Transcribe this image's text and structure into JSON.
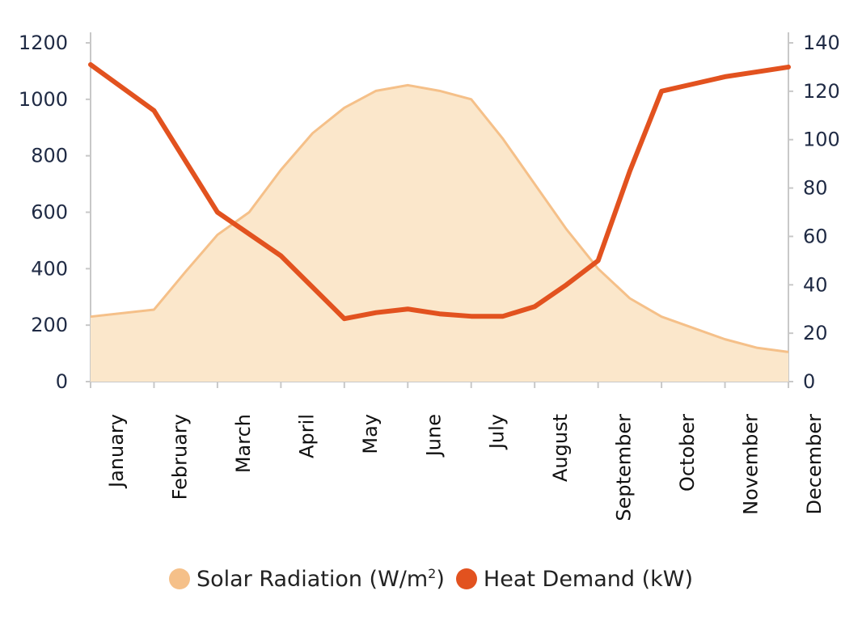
{
  "chart_data": {
    "type": "area",
    "categories": [
      "January",
      "February",
      "March",
      "April",
      "May",
      "June",
      "July",
      "August",
      "September",
      "October",
      "November",
      "December"
    ],
    "y_left": {
      "ticks": [
        "0",
        "200",
        "400",
        "600",
        "800",
        "1000",
        "1200"
      ],
      "range": [
        0,
        1200
      ]
    },
    "y_right": {
      "ticks": [
        "0",
        "20",
        "40",
        "60",
        "80",
        "100",
        "120",
        "140"
      ],
      "range": [
        0,
        140
      ]
    },
    "series": [
      {
        "id": "solar",
        "axis": "left",
        "chart_type": "area",
        "legend_text": "Solar Radiation (W/m",
        "legend_sup": "2",
        "legend_close": ")",
        "color": "#f5c089",
        "fill": "#fbe7cb",
        "x": [
          0,
          1,
          1.5,
          2,
          2.5,
          3,
          3.5,
          4,
          4.5,
          5,
          5.5,
          6,
          6.5,
          7,
          7.5,
          8,
          8.5,
          9,
          9.5,
          10,
          10.5,
          11
        ],
        "values": [
          230,
          255,
          390,
          520,
          600,
          750,
          880,
          970,
          1030,
          1050,
          1030,
          1000,
          860,
          700,
          540,
          400,
          295,
          230,
          190,
          150,
          120,
          105
        ]
      },
      {
        "id": "heat",
        "axis": "right",
        "chart_type": "line",
        "legend_text": "Heat Demand (kW)",
        "color": "#e2521f",
        "x": [
          0,
          1,
          2,
          3,
          4,
          4.5,
          5,
          5.5,
          6,
          6.5,
          7,
          7.5,
          8,
          8.5,
          9,
          9.5,
          10,
          10.5,
          11
        ],
        "values": [
          131,
          112,
          70,
          52,
          26,
          28.5,
          30,
          28,
          27,
          27,
          31,
          40,
          50,
          87,
          120,
          123,
          126,
          128,
          130
        ]
      }
    ]
  }
}
